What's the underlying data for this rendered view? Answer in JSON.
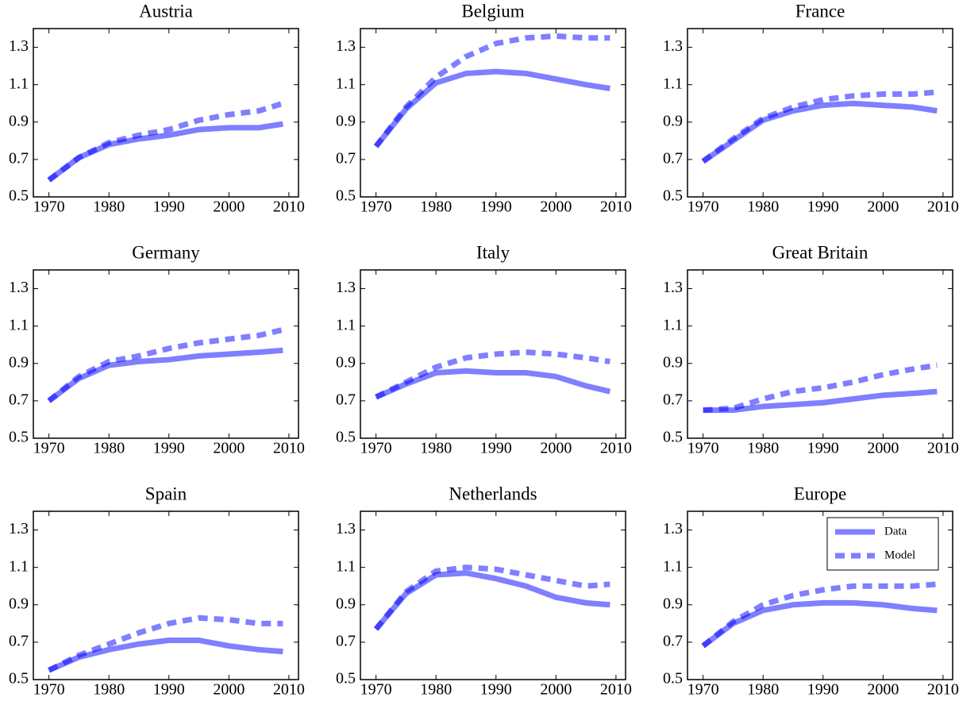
{
  "chart_data": [
    {
      "type": "line",
      "title": "Austria",
      "x": [
        1970,
        1975,
        1980,
        1985,
        1990,
        1995,
        2000,
        2005,
        2009
      ],
      "xlim": [
        1967.4,
        2011.6
      ],
      "xticks": [
        1970,
        1980,
        1990,
        2000,
        2010
      ],
      "ylim": [
        0.5,
        1.4
      ],
      "yticks": [
        0.5,
        0.7,
        0.9,
        1.1,
        1.3
      ],
      "series": [
        {
          "color": "#0000ff",
          "style": "solid",
          "values": [
            0.59,
            0.71,
            0.78,
            0.81,
            0.83,
            0.86,
            0.87,
            0.87,
            0.89
          ]
        },
        {
          "color": "#0000ff",
          "style": "dashed",
          "values": [
            0.59,
            0.71,
            0.79,
            0.83,
            0.86,
            0.91,
            0.94,
            0.96,
            1.0
          ]
        }
      ]
    },
    {
      "type": "line",
      "title": "Belgium",
      "x": [
        1970,
        1975,
        1980,
        1985,
        1990,
        1995,
        2000,
        2005,
        2009
      ],
      "xlim": [
        1967.4,
        2011.6
      ],
      "xticks": [
        1970,
        1980,
        1990,
        2000,
        2010
      ],
      "ylim": [
        0.5,
        1.4
      ],
      "yticks": [
        0.5,
        0.7,
        0.9,
        1.1,
        1.3
      ],
      "series": [
        {
          "color": "#0000ff",
          "style": "solid",
          "values": [
            0.77,
            0.97,
            1.11,
            1.16,
            1.17,
            1.16,
            1.13,
            1.1,
            1.08
          ]
        },
        {
          "color": "#0000ff",
          "style": "dashed",
          "values": [
            0.77,
            0.98,
            1.14,
            1.25,
            1.32,
            1.35,
            1.36,
            1.35,
            1.35
          ]
        }
      ]
    },
    {
      "type": "line",
      "title": "France",
      "x": [
        1970,
        1975,
        1980,
        1985,
        1990,
        1995,
        2000,
        2005,
        2009
      ],
      "xlim": [
        1967.4,
        2011.6
      ],
      "xticks": [
        1970,
        1980,
        1990,
        2000,
        2010
      ],
      "ylim": [
        0.5,
        1.4
      ],
      "yticks": [
        0.5,
        0.7,
        0.9,
        1.1,
        1.3
      ],
      "series": [
        {
          "color": "#0000ff",
          "style": "solid",
          "values": [
            0.69,
            0.8,
            0.91,
            0.96,
            0.99,
            1.0,
            0.99,
            0.98,
            0.96
          ]
        },
        {
          "color": "#0000ff",
          "style": "dashed",
          "values": [
            0.69,
            0.81,
            0.92,
            0.98,
            1.02,
            1.04,
            1.05,
            1.05,
            1.06
          ]
        }
      ]
    },
    {
      "type": "line",
      "title": "Germany",
      "x": [
        1970,
        1975,
        1980,
        1985,
        1990,
        1995,
        2000,
        2005,
        2009
      ],
      "xlim": [
        1967.4,
        2011.6
      ],
      "xticks": [
        1970,
        1980,
        1990,
        2000,
        2010
      ],
      "ylim": [
        0.5,
        1.4
      ],
      "yticks": [
        0.5,
        0.7,
        0.9,
        1.1,
        1.3
      ],
      "series": [
        {
          "color": "#0000ff",
          "style": "solid",
          "values": [
            0.7,
            0.82,
            0.89,
            0.91,
            0.92,
            0.94,
            0.95,
            0.96,
            0.97
          ]
        },
        {
          "color": "#0000ff",
          "style": "dashed",
          "values": [
            0.7,
            0.83,
            0.91,
            0.94,
            0.98,
            1.01,
            1.03,
            1.05,
            1.08
          ]
        }
      ]
    },
    {
      "type": "line",
      "title": "Italy",
      "x": [
        1970,
        1975,
        1980,
        1985,
        1990,
        1995,
        2000,
        2005,
        2009
      ],
      "xlim": [
        1967.4,
        2011.6
      ],
      "xticks": [
        1970,
        1980,
        1990,
        2000,
        2010
      ],
      "ylim": [
        0.5,
        1.4
      ],
      "yticks": [
        0.5,
        0.7,
        0.9,
        1.1,
        1.3
      ],
      "series": [
        {
          "color": "#0000ff",
          "style": "solid",
          "values": [
            0.72,
            0.79,
            0.85,
            0.86,
            0.85,
            0.85,
            0.83,
            0.78,
            0.75
          ]
        },
        {
          "color": "#0000ff",
          "style": "dashed",
          "values": [
            0.72,
            0.8,
            0.88,
            0.93,
            0.95,
            0.96,
            0.95,
            0.93,
            0.91
          ]
        }
      ]
    },
    {
      "type": "line",
      "title": "Great Britain",
      "x": [
        1970,
        1975,
        1980,
        1985,
        1990,
        1995,
        2000,
        2005,
        2009
      ],
      "xlim": [
        1967.4,
        2011.6
      ],
      "xticks": [
        1970,
        1980,
        1990,
        2000,
        2010
      ],
      "ylim": [
        0.5,
        1.4
      ],
      "yticks": [
        0.5,
        0.7,
        0.9,
        1.1,
        1.3
      ],
      "series": [
        {
          "color": "#0000ff",
          "style": "solid",
          "values": [
            0.65,
            0.65,
            0.67,
            0.68,
            0.69,
            0.71,
            0.73,
            0.74,
            0.75
          ]
        },
        {
          "color": "#0000ff",
          "style": "dashed",
          "values": [
            0.65,
            0.66,
            0.71,
            0.75,
            0.77,
            0.8,
            0.84,
            0.87,
            0.89
          ]
        }
      ]
    },
    {
      "type": "line",
      "title": "Spain",
      "x": [
        1970,
        1975,
        1980,
        1985,
        1990,
        1995,
        2000,
        2005,
        2009
      ],
      "xlim": [
        1967.4,
        2011.6
      ],
      "xticks": [
        1970,
        1980,
        1990,
        2000,
        2010
      ],
      "ylim": [
        0.5,
        1.4
      ],
      "yticks": [
        0.5,
        0.7,
        0.9,
        1.1,
        1.3
      ],
      "series": [
        {
          "color": "#0000ff",
          "style": "solid",
          "values": [
            0.55,
            0.62,
            0.66,
            0.69,
            0.71,
            0.71,
            0.68,
            0.66,
            0.65
          ]
        },
        {
          "color": "#0000ff",
          "style": "dashed",
          "values": [
            0.55,
            0.63,
            0.69,
            0.75,
            0.8,
            0.83,
            0.82,
            0.8,
            0.8
          ]
        }
      ]
    },
    {
      "type": "line",
      "title": "Netherlands",
      "x": [
        1970,
        1975,
        1980,
        1985,
        1990,
        1995,
        2000,
        2005,
        2009
      ],
      "xlim": [
        1967.4,
        2011.6
      ],
      "xticks": [
        1970,
        1980,
        1990,
        2000,
        2010
      ],
      "ylim": [
        0.5,
        1.4
      ],
      "yticks": [
        0.5,
        0.7,
        0.9,
        1.1,
        1.3
      ],
      "series": [
        {
          "color": "#0000ff",
          "style": "solid",
          "values": [
            0.77,
            0.96,
            1.06,
            1.07,
            1.04,
            1.0,
            0.94,
            0.91,
            0.9
          ]
        },
        {
          "color": "#0000ff",
          "style": "dashed",
          "values": [
            0.77,
            0.97,
            1.08,
            1.1,
            1.09,
            1.06,
            1.03,
            1.0,
            1.01
          ]
        }
      ]
    },
    {
      "type": "line",
      "title": "Europe",
      "x": [
        1970,
        1975,
        1980,
        1985,
        1990,
        1995,
        2000,
        2005,
        2009
      ],
      "xlim": [
        1967.4,
        2011.6
      ],
      "xticks": [
        1970,
        1980,
        1990,
        2000,
        2010
      ],
      "ylim": [
        0.5,
        1.4
      ],
      "yticks": [
        0.5,
        0.7,
        0.9,
        1.1,
        1.3
      ],
      "legend": "upper right",
      "series": [
        {
          "name": "Data",
          "color": "#0000ff",
          "style": "solid",
          "values": [
            0.68,
            0.8,
            0.87,
            0.9,
            0.91,
            0.91,
            0.9,
            0.88,
            0.87
          ]
        },
        {
          "name": "Model",
          "color": "#0000ff",
          "style": "dashed",
          "values": [
            0.68,
            0.81,
            0.9,
            0.95,
            0.98,
            1.0,
            1.0,
            1.0,
            1.01
          ]
        }
      ]
    }
  ]
}
